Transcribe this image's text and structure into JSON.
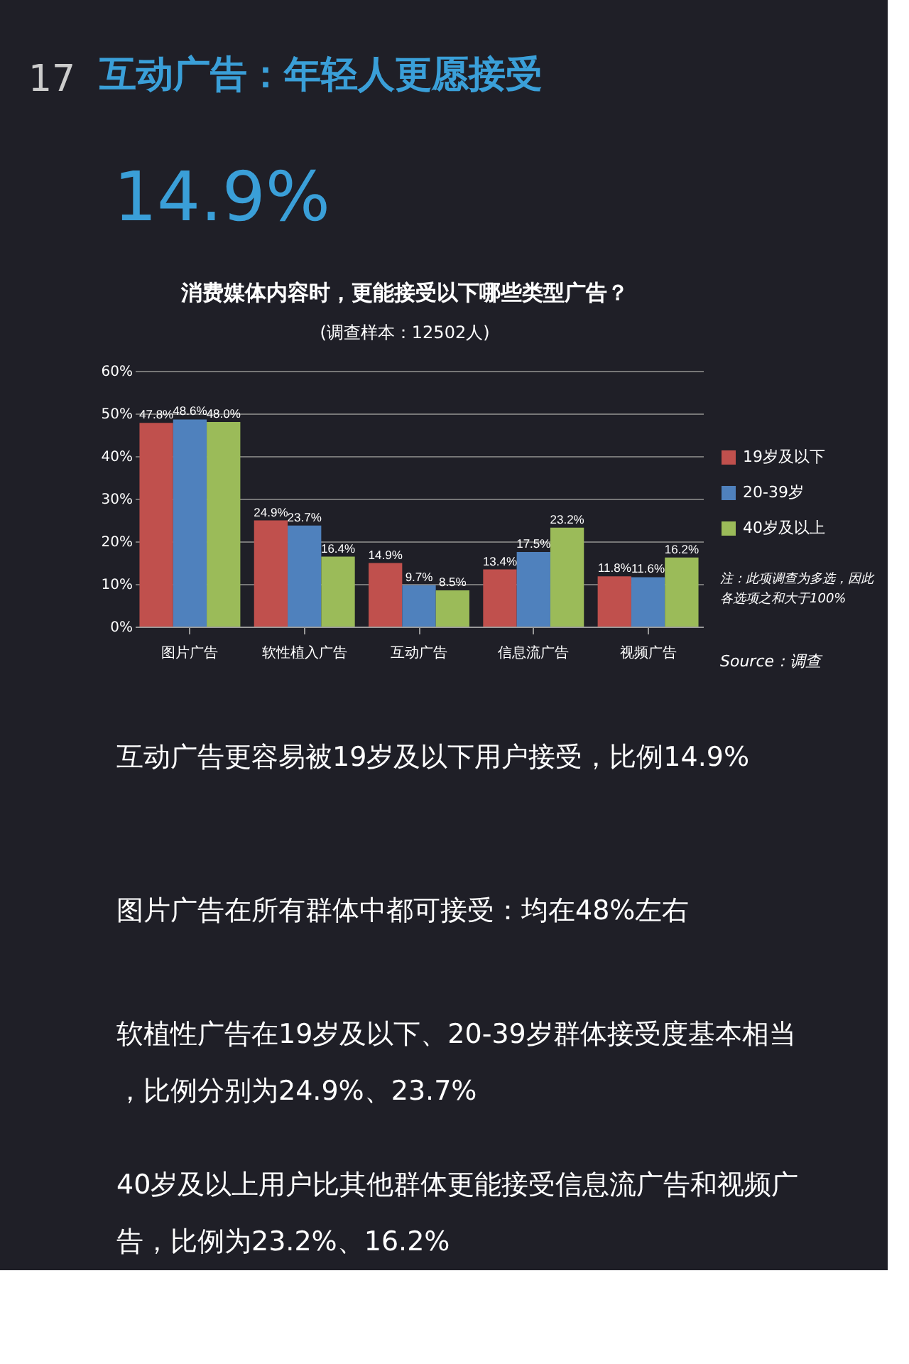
{
  "chart_data": {
    "type": "bar",
    "title": "消费媒体内容时，更能接受以下哪些类型广告？",
    "subtitle": "(调查样本：12502人)",
    "categories": [
      "图片广告",
      "软性植入广告",
      "互动广告",
      "信息流广告",
      "视频广告"
    ],
    "series": [
      {
        "name": "19岁及以下",
        "color": "#c0504d",
        "values": [
          47.8,
          24.9,
          14.9,
          13.4,
          11.8
        ]
      },
      {
        "name": "20-39岁",
        "color": "#4f81bd",
        "values": [
          48.6,
          23.7,
          9.7,
          17.5,
          11.6
        ]
      },
      {
        "name": "40岁及以上",
        "color": "#9bbb59",
        "values": [
          48.0,
          16.4,
          8.5,
          23.2,
          16.2
        ]
      }
    ],
    "ylim": [
      0,
      60
    ],
    "yticks": [
      {
        "value": 0,
        "label": "0%"
      },
      {
        "value": 10,
        "label": "10%"
      },
      {
        "value": 20,
        "label": "20%"
      },
      {
        "value": 30,
        "label": "30%"
      },
      {
        "value": 40,
        "label": "40%"
      },
      {
        "value": 50,
        "label": "50%"
      },
      {
        "value": 60,
        "label": "60%"
      }
    ],
    "value_labels": [
      [
        "47.8%",
        "24.9%",
        "14.9%",
        "13.4%",
        "11.8%"
      ],
      [
        "48.6%",
        "23.7%",
        "9.7%",
        "17.5%",
        "11.6%"
      ],
      [
        "48.0%",
        "16.4%",
        "8.5%",
        "23.2%",
        "16.2%"
      ]
    ],
    "grid": "y",
    "legend": "right",
    "annotations": [
      "17",
      "互动广告：年轻人更愿接受",
      "14.9%",
      "注：此项调查为多选，因此各选项之和大于100%",
      "Source：调查",
      "互动广告更容易被19岁及以下用户接受，比例14.9%",
      "图片广告在所有群体中都可接受：均在48%左右",
      "软植性广告在19岁及以下、20-39岁群体接受度基本相当，比例分别为24.9%、23.7%",
      "40岁及以上用户比其他群体更能接受信息流广告和视频广告，比例为23.2%、16.2%"
    ]
  }
}
